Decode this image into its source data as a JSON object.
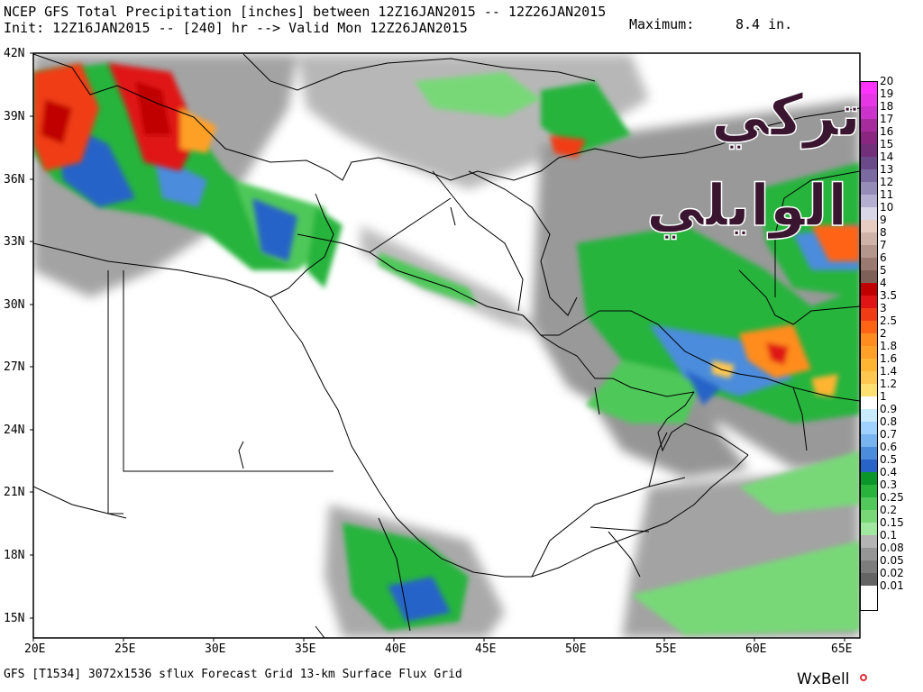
{
  "header": {
    "title_line1": "NCEP GFS Total Precipitation [inches] between 12Z16JAN2015 -- 12Z26JAN2015",
    "title_line2": "Init: 12Z16JAN2015 -- [240] hr --> Valid Mon 12Z26JAN2015",
    "maximum_label": "Maximum:",
    "maximum_value": "8.4 in."
  },
  "axes": {
    "lat_labels": [
      "42N",
      "39N",
      "36N",
      "33N",
      "30N",
      "27N",
      "24N",
      "21N",
      "18N",
      "15N"
    ],
    "lon_labels": [
      "20E",
      "25E",
      "30E",
      "35E",
      "40E",
      "45E",
      "50E",
      "55E",
      "60E",
      "65E"
    ]
  },
  "colorscale": {
    "labels": [
      "20",
      "19",
      "18",
      "17",
      "16",
      "15",
      "14",
      "13",
      "12",
      "11",
      "10",
      "9",
      "8",
      "7",
      "6",
      "5",
      "4",
      "3.5",
      "3",
      "2.5",
      "2",
      "1.8",
      "1.6",
      "1.4",
      "1.2",
      "1",
      "0.9",
      "0.8",
      "0.7",
      "0.6",
      "0.5",
      "0.4",
      "0.3",
      "0.25",
      "0.2",
      "0.15",
      "0.1",
      "0.08",
      "0.05",
      "0.02",
      "0.01"
    ],
    "colors": [
      "#ff33ff",
      "#e636e6",
      "#cc33cc",
      "#a62c9e",
      "#8a267f",
      "#73307a",
      "#6a4a88",
      "#7a6aa0",
      "#968cb8",
      "#b4aed0",
      "#d9d6e8",
      "#e7ccc2",
      "#cfb2a8",
      "#b4968c",
      "#9a7a70",
      "#7e6058",
      "#c00000",
      "#e01414",
      "#f03c14",
      "#ff6414",
      "#ff8c1e",
      "#ffa028",
      "#ffb432",
      "#ffc850",
      "#ffe070",
      "#ffffff",
      "#c8ebff",
      "#a0d2ff",
      "#78b4f0",
      "#4b8cdc",
      "#2864c8",
      "#0a9628",
      "#28b43c",
      "#50c85a",
      "#78d878",
      "#a0e8a0",
      "#b4b4b4",
      "#969696",
      "#7d7d7d",
      "#646464",
      "#ffffff"
    ]
  },
  "footer": {
    "model_info": "GFS [T1534] 3072x1536 sflux Forecast Grid 13-km Surface Flux Grid",
    "brand": "WxBell"
  },
  "watermark": {
    "line1": "تركي",
    "line2": "الوايلي"
  },
  "map": {
    "projection": "lat-lon",
    "lon_range": [
      20,
      66
    ],
    "lat_range": [
      14,
      42
    ],
    "background": "#ffffff",
    "precip_regions_note": "Heaviest precipitation over southern Balkans/Aegean, Iran and Pakistan; max 8.4 in."
  }
}
